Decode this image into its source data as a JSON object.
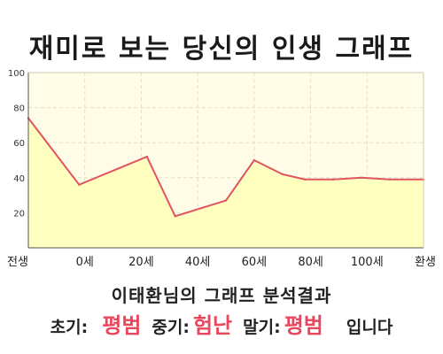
{
  "title": "재미로 보는 당신의 인생 그래프",
  "chart_data": {
    "type": "area",
    "title": "재미로 보는 당신의 인생 그래프",
    "xlabel": "",
    "ylabel": "",
    "ylim": [
      0,
      100
    ],
    "yticks": [
      20,
      40,
      60,
      80,
      100
    ],
    "xlim": [
      -20,
      100
    ],
    "xticks": [
      {
        "value": -20,
        "label": "전생"
      },
      {
        "value": 0,
        "label": "0세"
      },
      {
        "value": 20,
        "label": "20세"
      },
      {
        "value": 40,
        "label": "40세"
      },
      {
        "value": 60,
        "label": "60세"
      },
      {
        "value": 80,
        "label": "80세"
      },
      {
        "value": 100,
        "label": "100세"
      },
      {
        "value": 120,
        "label": "환생"
      }
    ],
    "series": [
      {
        "x": [
          -20,
          -2,
          22,
          32,
          42,
          50,
          60,
          70,
          78,
          88,
          98,
          108,
          120
        ],
        "values": [
          74,
          36,
          52,
          18,
          23,
          27,
          50,
          42,
          39,
          39,
          40,
          39,
          39
        ]
      }
    ],
    "grid": true,
    "colors": {
      "line": "#e05561",
      "fill": "#ffffc0",
      "plot_bg": "#fffde8",
      "grid": "#e3e0c8"
    }
  },
  "summary": {
    "heading": "이태환님의 그래프 분석결과",
    "early_label": "초기:",
    "early_value": "평범",
    "middle_label": "중기:",
    "middle_value": "험난",
    "late_label": "말기:",
    "late_value": "평범",
    "tail": "입니다"
  }
}
